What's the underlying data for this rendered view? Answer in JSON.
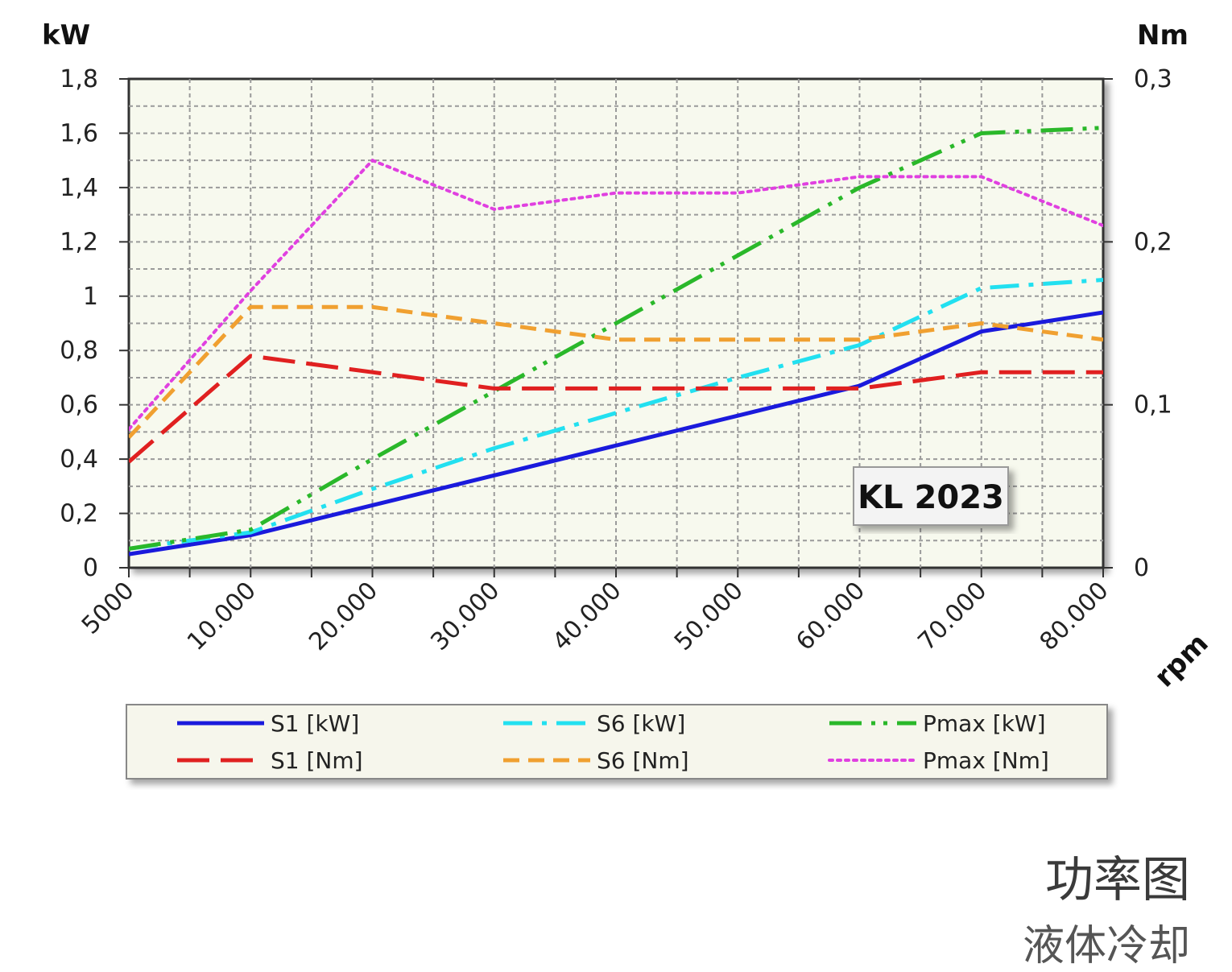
{
  "chart_data": {
    "type": "line",
    "x": [
      5000,
      10000,
      20000,
      30000,
      40000,
      50000,
      60000,
      70000,
      80000
    ],
    "x_tick_labels": [
      "5000",
      "10.000",
      "20.000",
      "30.000",
      "40.000",
      "50.000",
      "60.000",
      "70.000",
      "80.000"
    ],
    "xlabel": "rpm",
    "ylabel_left": "kW",
    "ylabel_right": "Nm",
    "ylim_left": [
      0,
      1.8
    ],
    "ylim_right": [
      0,
      0.3
    ],
    "y_ticks_left": [
      "0",
      "0,2",
      "0,4",
      "0,6",
      "0,8",
      "1",
      "1,2",
      "1,4",
      "1,6",
      "1,8"
    ],
    "y_ticks_right": [
      "0",
      "0,1",
      "0,2",
      "0,3"
    ],
    "grid": true,
    "annotation": "KL 2023",
    "series": [
      {
        "name": "S1 [kW]",
        "axis": "left",
        "color": "#1a1adc",
        "dash": "solid",
        "values": [
          0.05,
          0.12,
          0.23,
          0.34,
          0.45,
          0.56,
          0.67,
          0.87,
          0.94
        ]
      },
      {
        "name": "S6 [kW]",
        "axis": "left",
        "color": "#22e0f0",
        "dash": "dashdot",
        "values": [
          0.07,
          0.13,
          0.29,
          0.44,
          0.57,
          0.7,
          0.82,
          1.03,
          1.06
        ]
      },
      {
        "name": "Pmax [kW]",
        "axis": "left",
        "color": "#2ab82a",
        "dash": "dashdotdot",
        "values": [
          0.07,
          0.14,
          0.4,
          0.65,
          0.9,
          1.15,
          1.4,
          1.6,
          1.62
        ]
      },
      {
        "name": "S1 [Nm]",
        "axis": "right",
        "color": "#e02020",
        "dash": "longdash",
        "values": [
          0.065,
          0.13,
          0.12,
          0.11,
          0.11,
          0.11,
          0.11,
          0.12,
          0.12
        ]
      },
      {
        "name": "S6 [Nm]",
        "axis": "right",
        "color": "#f0a030",
        "dash": "dash",
        "values": [
          0.08,
          0.16,
          0.16,
          0.15,
          0.14,
          0.14,
          0.14,
          0.15,
          0.14
        ]
      },
      {
        "name": "Pmax [Nm]",
        "axis": "right",
        "color": "#e040e0",
        "dash": "dotted",
        "values": [
          0.085,
          0.17,
          0.25,
          0.22,
          0.23,
          0.23,
          0.24,
          0.24,
          0.21
        ]
      }
    ]
  },
  "caption": {
    "title": "功率图",
    "subtitle": "液体冷却"
  }
}
